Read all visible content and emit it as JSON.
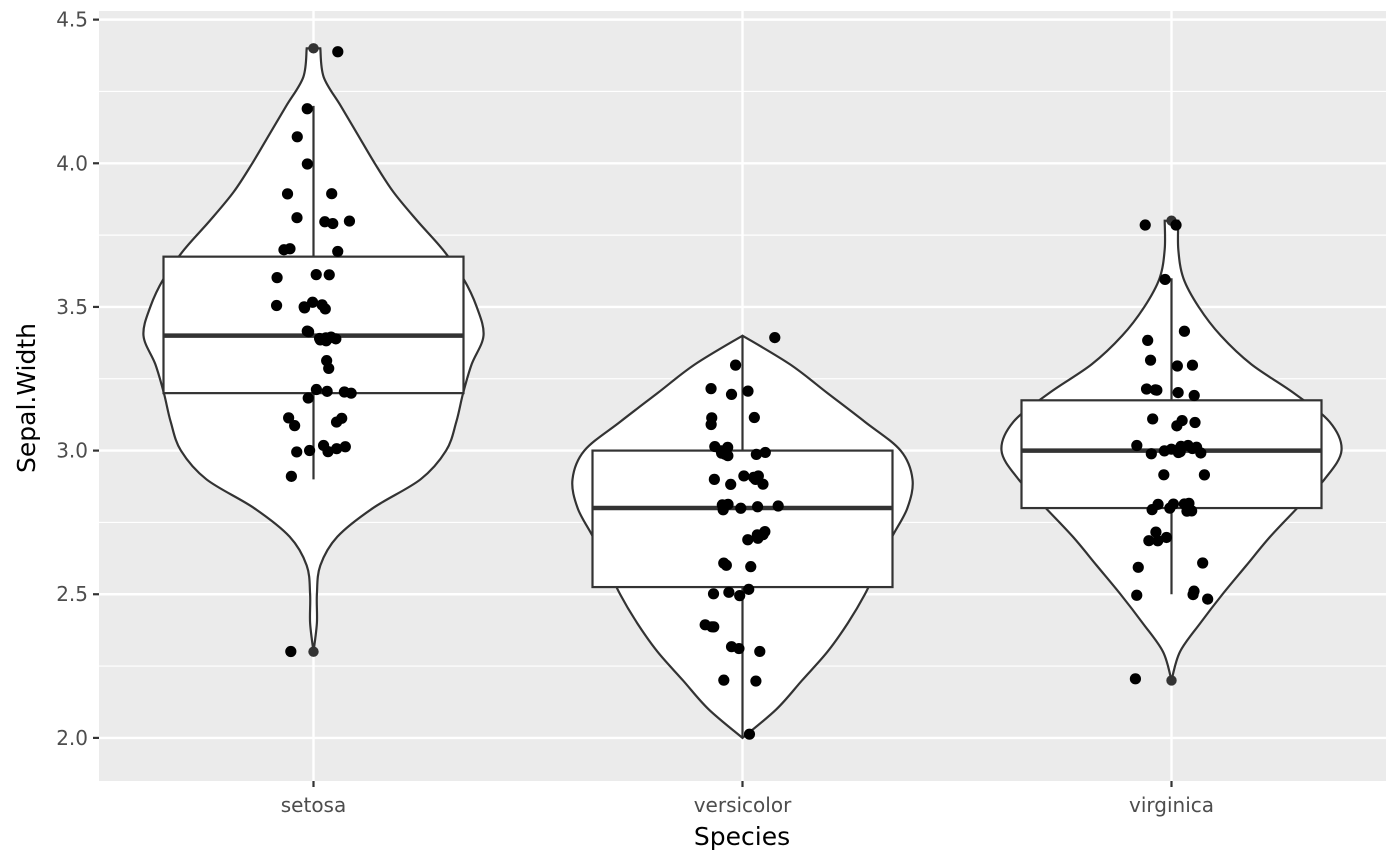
{
  "chart_data": {
    "type": "violin",
    "overlays": [
      "boxplot",
      "jitter"
    ],
    "xlabel": "Species",
    "ylabel": "Sepal.Width",
    "categories": [
      "setosa",
      "versicolor",
      "virginica"
    ],
    "ylim": [
      1.85,
      4.53
    ],
    "yticks": [
      2.0,
      2.5,
      3.0,
      3.5,
      4.0,
      4.5
    ],
    "ytick_labels": [
      "2.0",
      "2.5",
      "3.0",
      "3.5",
      "4.0",
      "4.5"
    ],
    "grid": true,
    "legend": "none",
    "colors": {
      "panel": "#ebebeb",
      "grid": "#ffffff",
      "outline": "#333333",
      "fill": "#ffffff",
      "point": "#000000",
      "tick_text": "#4d4d4d"
    },
    "series": [
      {
        "category": "setosa",
        "box": {
          "lower": 3.2,
          "q1": 3.2,
          "median": 3.4,
          "q3": 3.675,
          "whisker_low": 2.9,
          "whisker_high": 4.2,
          "outliers": [
            2.3,
            4.4
          ]
        },
        "density": [
          [
            2.3,
            0.0
          ],
          [
            2.4,
            0.02
          ],
          [
            2.5,
            0.02
          ],
          [
            2.6,
            0.04
          ],
          [
            2.7,
            0.14
          ],
          [
            2.8,
            0.35
          ],
          [
            2.9,
            0.63
          ],
          [
            3.0,
            0.78
          ],
          [
            3.1,
            0.84
          ],
          [
            3.2,
            0.88
          ],
          [
            3.3,
            0.93
          ],
          [
            3.4,
            1.0
          ],
          [
            3.5,
            0.96
          ],
          [
            3.6,
            0.88
          ],
          [
            3.7,
            0.76
          ],
          [
            3.8,
            0.61
          ],
          [
            3.9,
            0.47
          ],
          [
            4.0,
            0.36
          ],
          [
            4.1,
            0.26
          ],
          [
            4.2,
            0.16
          ],
          [
            4.3,
            0.06
          ],
          [
            4.4,
            0.04
          ]
        ],
        "points": [
          3.5,
          3.0,
          3.2,
          3.1,
          3.6,
          3.9,
          3.4,
          3.4,
          2.9,
          3.1,
          3.7,
          3.4,
          3.0,
          3.0,
          4.0,
          4.4,
          3.9,
          3.5,
          3.8,
          3.8,
          3.4,
          3.7,
          3.6,
          3.3,
          3.4,
          3.0,
          3.4,
          3.5,
          3.4,
          3.2,
          3.1,
          3.4,
          4.1,
          4.2,
          3.1,
          3.2,
          3.5,
          3.6,
          3.0,
          3.4,
          3.5,
          2.3,
          3.2,
          3.5,
          3.8,
          3.0,
          3.8,
          3.2,
          3.7,
          3.3
        ]
      },
      {
        "category": "versicolor",
        "box": {
          "q1": 2.525,
          "median": 2.8,
          "q3": 3.0,
          "whisker_low": 2.0,
          "whisker_high": 3.4,
          "outliers": []
        },
        "density": [
          [
            2.0,
            0.0
          ],
          [
            2.1,
            0.2
          ],
          [
            2.2,
            0.35
          ],
          [
            2.3,
            0.5
          ],
          [
            2.4,
            0.62
          ],
          [
            2.5,
            0.72
          ],
          [
            2.6,
            0.8
          ],
          [
            2.7,
            0.88
          ],
          [
            2.8,
            0.97
          ],
          [
            2.9,
            1.0
          ],
          [
            3.0,
            0.93
          ],
          [
            3.1,
            0.72
          ],
          [
            3.2,
            0.5
          ],
          [
            3.3,
            0.28
          ],
          [
            3.4,
            0.0
          ]
        ],
        "points": [
          3.2,
          3.2,
          3.1,
          2.3,
          2.8,
          2.8,
          3.3,
          2.4,
          2.9,
          2.7,
          2.0,
          3.0,
          2.2,
          2.9,
          2.9,
          3.1,
          3.0,
          2.7,
          2.2,
          2.5,
          3.2,
          2.8,
          2.5,
          2.8,
          2.9,
          3.0,
          2.8,
          3.0,
          2.9,
          2.6,
          2.4,
          2.4,
          2.7,
          2.7,
          3.0,
          3.4,
          3.1,
          2.3,
          3.0,
          2.5,
          2.6,
          3.0,
          2.6,
          2.3,
          2.7,
          3.0,
          2.9,
          2.9,
          2.5,
          2.8
        ]
      },
      {
        "category": "virginica",
        "box": {
          "q1": 2.8,
          "median": 3.0,
          "q3": 3.175,
          "whisker_low": 2.5,
          "whisker_high": 3.6,
          "outliers": [
            2.2,
            3.8
          ]
        },
        "density": [
          [
            2.2,
            0.0
          ],
          [
            2.3,
            0.05
          ],
          [
            2.4,
            0.17
          ],
          [
            2.5,
            0.3
          ],
          [
            2.6,
            0.44
          ],
          [
            2.7,
            0.58
          ],
          [
            2.8,
            0.74
          ],
          [
            2.9,
            0.9
          ],
          [
            3.0,
            1.0
          ],
          [
            3.1,
            0.93
          ],
          [
            3.2,
            0.72
          ],
          [
            3.3,
            0.47
          ],
          [
            3.4,
            0.29
          ],
          [
            3.5,
            0.16
          ],
          [
            3.6,
            0.07
          ],
          [
            3.7,
            0.04
          ],
          [
            3.8,
            0.04
          ]
        ],
        "points": [
          3.3,
          2.7,
          3.0,
          2.9,
          3.0,
          3.0,
          2.5,
          2.9,
          2.5,
          3.6,
          3.2,
          2.7,
          3.0,
          2.5,
          2.8,
          3.2,
          3.0,
          3.8,
          2.6,
          2.2,
          3.2,
          2.8,
          2.8,
          2.7,
          3.3,
          3.2,
          2.8,
          3.0,
          2.8,
          3.0,
          2.8,
          3.8,
          2.8,
          2.8,
          2.6,
          3.0,
          3.4,
          3.1,
          3.0,
          3.1,
          3.1,
          3.1,
          2.7,
          3.2,
          3.3,
          3.0,
          2.5,
          3.0,
          3.4,
          3.0
        ]
      }
    ]
  }
}
